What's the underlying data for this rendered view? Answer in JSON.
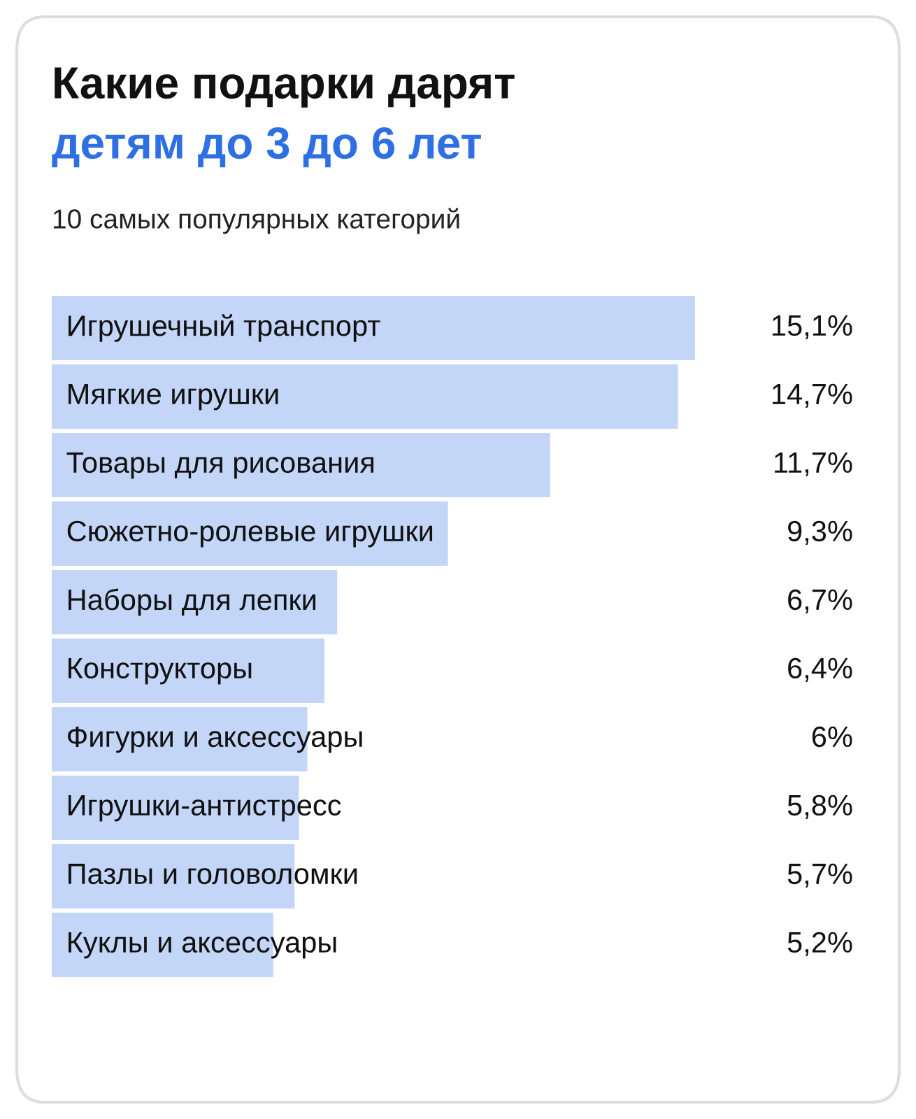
{
  "chart_data": {
    "type": "bar",
    "orientation": "horizontal",
    "title": "Какие подарки дарят",
    "subtitle": "детям до 3 до 6 лет",
    "annotations": [
      "10 самых популярных категорий"
    ],
    "categories": [
      "Игрушечный транспорт",
      "Мягкие игрушки",
      "Товары для рисования",
      "Сюжетно-ролевые игрушки",
      "Наборы для лепки",
      "Конструкторы",
      "Фигурки и аксессуары",
      "Игрушки-антистресс",
      "Пазлы и головоломки",
      "Куклы и аксессуары"
    ],
    "series": [
      {
        "color": "#c4d6f8",
        "values": [
          15.1,
          14.7,
          11.7,
          9.3,
          6.7,
          6.4,
          6,
          5.8,
          5.7,
          5.2
        ],
        "value_labels": [
          "15,1%",
          "14,7%",
          "11,7%",
          "9,3%",
          "6,7%",
          "6,4%",
          "6%",
          "5,8%",
          "5,7%",
          "5,2%"
        ]
      }
    ]
  }
}
